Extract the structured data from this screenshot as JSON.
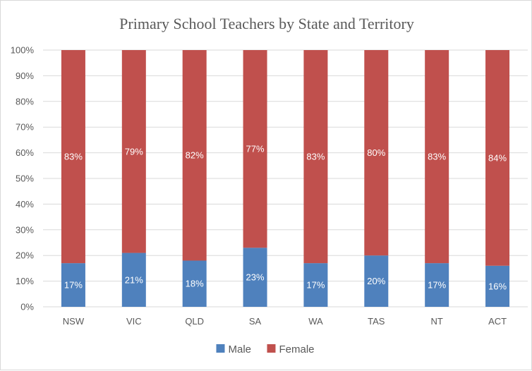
{
  "chart_data": {
    "type": "bar",
    "stacked": true,
    "title": "Primary School Teachers by State and Territory",
    "categories": [
      "NSW",
      "VIC",
      "QLD",
      "SA",
      "WA",
      "TAS",
      "NT",
      "ACT"
    ],
    "series": [
      {
        "name": "Male",
        "values": [
          17,
          21,
          18,
          23,
          17,
          20,
          17,
          16
        ],
        "color": "#4f81bd"
      },
      {
        "name": "Female",
        "values": [
          83,
          79,
          82,
          77,
          83,
          80,
          83,
          84
        ],
        "color": "#c0504d"
      }
    ],
    "ylim": [
      0,
      100
    ],
    "y_ticks": [
      "0%",
      "10%",
      "20%",
      "30%",
      "40%",
      "50%",
      "60%",
      "70%",
      "80%",
      "90%",
      "100%"
    ],
    "value_suffix": "%",
    "grid": true,
    "legend_position": "bottom"
  }
}
